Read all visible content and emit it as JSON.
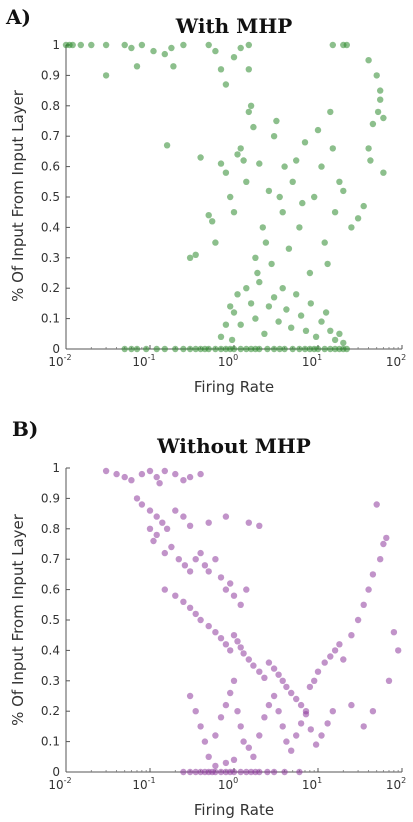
{
  "chart_data": [
    {
      "type": "scatter",
      "panel_label": "A)",
      "title": "With MHP",
      "xlabel": "Firing Rate",
      "ylabel": "% Of Input From Input Layer",
      "xscale": "log",
      "xlim": [
        0.01,
        100
      ],
      "ylim": [
        0,
        1
      ],
      "x_ticks": [
        "10",
        "10",
        "10",
        "10",
        "10"
      ],
      "x_tick_exponents": [
        "-2",
        "-1",
        "0",
        "1",
        "2"
      ],
      "y_ticks": [
        "0",
        "0.1",
        "0.2",
        "0.3",
        "0.4",
        "0.5",
        "0.6",
        "0.7",
        "0.8",
        "0.9",
        "1"
      ],
      "color": "#2e8b2e",
      "grid": false,
      "points_visible": "approx 700 points (representative sample)",
      "points": [
        [
          0.01,
          1
        ],
        [
          0.011,
          1
        ],
        [
          0.012,
          1
        ],
        [
          0.015,
          1
        ],
        [
          0.02,
          1
        ],
        [
          0.03,
          1
        ],
        [
          0.03,
          0.9
        ],
        [
          0.05,
          1
        ],
        [
          0.06,
          0.99
        ],
        [
          0.07,
          0.93
        ],
        [
          0.08,
          1
        ],
        [
          0.11,
          0.98
        ],
        [
          0.15,
          0.97
        ],
        [
          0.18,
          0.99
        ],
        [
          0.19,
          0.93
        ],
        [
          0.25,
          1
        ],
        [
          0.5,
          1
        ],
        [
          0.6,
          0.98
        ],
        [
          1.0,
          0.96
        ],
        [
          1.2,
          0.99
        ],
        [
          1.5,
          1
        ],
        [
          0.7,
          0.92
        ],
        [
          0.8,
          0.87
        ],
        [
          1.5,
          0.92
        ],
        [
          15,
          1
        ],
        [
          20,
          1
        ],
        [
          22,
          1
        ],
        [
          40,
          0.95
        ],
        [
          50,
          0.9
        ],
        [
          55,
          0.85
        ],
        [
          55,
          0.82
        ],
        [
          52,
          0.78
        ],
        [
          60,
          0.76
        ],
        [
          45,
          0.74
        ],
        [
          0.16,
          0.67
        ],
        [
          0.3,
          0.3
        ],
        [
          0.35,
          0.31
        ],
        [
          0.4,
          0.63
        ],
        [
          0.5,
          0.44
        ],
        [
          0.55,
          0.42
        ],
        [
          0.6,
          0.35
        ],
        [
          0.7,
          0.61
        ],
        [
          0.8,
          0.58
        ],
        [
          0.9,
          0.5
        ],
        [
          1.0,
          0.45
        ],
        [
          1.1,
          0.64
        ],
        [
          1.2,
          0.66
        ],
        [
          1.3,
          0.62
        ],
        [
          1.4,
          0.55
        ],
        [
          1.5,
          0.78
        ],
        [
          1.6,
          0.8
        ],
        [
          1.7,
          0.73
        ],
        [
          1.8,
          0.3
        ],
        [
          1.9,
          0.25
        ],
        [
          2.0,
          0.61
        ],
        [
          2.2,
          0.4
        ],
        [
          2.4,
          0.35
        ],
        [
          2.6,
          0.52
        ],
        [
          2.8,
          0.28
        ],
        [
          3.0,
          0.7
        ],
        [
          3.2,
          0.75
        ],
        [
          3.5,
          0.5
        ],
        [
          3.8,
          0.45
        ],
        [
          4.0,
          0.6
        ],
        [
          4.5,
          0.33
        ],
        [
          5.0,
          0.55
        ],
        [
          5.5,
          0.62
        ],
        [
          6.0,
          0.4
        ],
        [
          6.5,
          0.48
        ],
        [
          7.0,
          0.68
        ],
        [
          8.0,
          0.25
        ],
        [
          9.0,
          0.5
        ],
        [
          10,
          0.72
        ],
        [
          11,
          0.6
        ],
        [
          12,
          0.35
        ],
        [
          13,
          0.28
        ],
        [
          14,
          0.78
        ],
        [
          15,
          0.66
        ],
        [
          16,
          0.45
        ],
        [
          18,
          0.55
        ],
        [
          20,
          0.52
        ],
        [
          25,
          0.4
        ],
        [
          30,
          0.43
        ],
        [
          35,
          0.47
        ],
        [
          40,
          0.66
        ],
        [
          42,
          0.62
        ],
        [
          60,
          0.58
        ],
        [
          1.0,
          0.12
        ],
        [
          1.1,
          0.18
        ],
        [
          1.2,
          0.08
        ],
        [
          1.4,
          0.2
        ],
        [
          1.6,
          0.15
        ],
        [
          1.8,
          0.1
        ],
        [
          2.0,
          0.22
        ],
        [
          2.3,
          0.05
        ],
        [
          2.6,
          0.14
        ],
        [
          3.0,
          0.17
        ],
        [
          3.4,
          0.09
        ],
        [
          3.8,
          0.2
        ],
        [
          4.2,
          0.13
        ],
        [
          4.8,
          0.07
        ],
        [
          5.5,
          0.18
        ],
        [
          6.3,
          0.11
        ],
        [
          7.2,
          0.06
        ],
        [
          8.2,
          0.15
        ],
        [
          9.5,
          0.04
        ],
        [
          11,
          0.09
        ],
        [
          12.5,
          0.12
        ],
        [
          14,
          0.06
        ],
        [
          16,
          0.03
        ],
        [
          18,
          0.05
        ],
        [
          20,
          0.02
        ],
        [
          0.7,
          0.04
        ],
        [
          0.8,
          0.08
        ],
        [
          0.9,
          0.14
        ],
        [
          0.95,
          0.03
        ],
        [
          0.05,
          0
        ],
        [
          0.06,
          0
        ],
        [
          0.07,
          0
        ],
        [
          0.09,
          0
        ],
        [
          0.12,
          0
        ],
        [
          0.15,
          0
        ],
        [
          0.2,
          0
        ],
        [
          0.25,
          0
        ],
        [
          0.3,
          0
        ],
        [
          0.35,
          0
        ],
        [
          0.4,
          0
        ],
        [
          0.45,
          0
        ],
        [
          0.5,
          0
        ],
        [
          0.6,
          0
        ],
        [
          0.7,
          0
        ],
        [
          0.8,
          0
        ],
        [
          0.9,
          0
        ],
        [
          1.0,
          0
        ],
        [
          1.2,
          0
        ],
        [
          1.4,
          0
        ],
        [
          1.6,
          0
        ],
        [
          1.8,
          0
        ],
        [
          2,
          0
        ],
        [
          2.5,
          0
        ],
        [
          3,
          0
        ],
        [
          3.5,
          0
        ],
        [
          4,
          0
        ],
        [
          5,
          0
        ],
        [
          6,
          0
        ],
        [
          7,
          0
        ],
        [
          8,
          0
        ],
        [
          9,
          0
        ],
        [
          10,
          0
        ],
        [
          12,
          0
        ],
        [
          14,
          0
        ],
        [
          16,
          0
        ],
        [
          18,
          0
        ],
        [
          20,
          0
        ],
        [
          22,
          0
        ]
      ]
    },
    {
      "type": "scatter",
      "panel_label": "B)",
      "title": "Without MHP",
      "xlabel": "Firing Rate",
      "ylabel": "% Of Input From Input Layer",
      "xscale": "log",
      "xlim": [
        0.01,
        100
      ],
      "ylim": [
        0,
        1
      ],
      "x_ticks": [
        "10",
        "10",
        "10",
        "10",
        "10"
      ],
      "x_tick_exponents": [
        "-2",
        "-1",
        "0",
        "1",
        "2"
      ],
      "y_ticks": [
        "0",
        "0.1",
        "0.2",
        "0.3",
        "0.4",
        "0.5",
        "0.6",
        "0.7",
        "0.8",
        "0.9",
        "1"
      ],
      "color": "#8e3a9d",
      "grid": false,
      "points_visible": "approx 900 points (representative sample)",
      "points": [
        [
          0.03,
          0.99
        ],
        [
          0.04,
          0.98
        ],
        [
          0.05,
          0.97
        ],
        [
          0.06,
          0.96
        ],
        [
          0.08,
          0.98
        ],
        [
          0.1,
          0.99
        ],
        [
          0.12,
          0.97
        ],
        [
          0.13,
          0.95
        ],
        [
          0.15,
          0.99
        ],
        [
          0.2,
          0.98
        ],
        [
          0.25,
          0.96
        ],
        [
          0.3,
          0.97
        ],
        [
          0.4,
          0.98
        ],
        [
          0.07,
          0.9
        ],
        [
          0.08,
          0.88
        ],
        [
          0.1,
          0.86
        ],
        [
          0.12,
          0.84
        ],
        [
          0.14,
          0.82
        ],
        [
          0.16,
          0.8
        ],
        [
          0.12,
          0.78
        ],
        [
          0.2,
          0.86
        ],
        [
          0.25,
          0.84
        ],
        [
          0.3,
          0.81
        ],
        [
          0.1,
          0.8
        ],
        [
          0.11,
          0.76
        ],
        [
          0.15,
          0.72
        ],
        [
          0.18,
          0.74
        ],
        [
          0.22,
          0.7
        ],
        [
          0.26,
          0.68
        ],
        [
          0.3,
          0.66
        ],
        [
          0.35,
          0.7
        ],
        [
          0.4,
          0.72
        ],
        [
          0.45,
          0.68
        ],
        [
          0.5,
          0.66
        ],
        [
          0.6,
          0.7
        ],
        [
          0.7,
          0.64
        ],
        [
          0.8,
          0.6
        ],
        [
          0.9,
          0.62
        ],
        [
          1.0,
          0.58
        ],
        [
          1.2,
          0.55
        ],
        [
          1.4,
          0.6
        ],
        [
          0.5,
          0.82
        ],
        [
          0.8,
          0.84
        ],
        [
          1.5,
          0.82
        ],
        [
          2.0,
          0.81
        ],
        [
          0.15,
          0.6
        ],
        [
          0.2,
          0.58
        ],
        [
          0.25,
          0.56
        ],
        [
          0.3,
          0.54
        ],
        [
          0.35,
          0.52
        ],
        [
          0.4,
          0.5
        ],
        [
          0.5,
          0.48
        ],
        [
          0.6,
          0.46
        ],
        [
          0.7,
          0.44
        ],
        [
          0.8,
          0.42
        ],
        [
          0.9,
          0.4
        ],
        [
          1.0,
          0.45
        ],
        [
          1.1,
          0.43
        ],
        [
          1.2,
          0.41
        ],
        [
          1.3,
          0.39
        ],
        [
          1.5,
          0.37
        ],
        [
          1.7,
          0.35
        ],
        [
          2,
          0.33
        ],
        [
          2.3,
          0.31
        ],
        [
          2.6,
          0.36
        ],
        [
          3,
          0.34
        ],
        [
          3.4,
          0.32
        ],
        [
          3.8,
          0.3
        ],
        [
          4.2,
          0.28
        ],
        [
          4.8,
          0.26
        ],
        [
          5.5,
          0.24
        ],
        [
          6.3,
          0.22
        ],
        [
          7.2,
          0.2
        ],
        [
          8,
          0.28
        ],
        [
          9,
          0.3
        ],
        [
          10,
          0.33
        ],
        [
          12,
          0.36
        ],
        [
          14,
          0.38
        ],
        [
          16,
          0.4
        ],
        [
          18,
          0.42
        ],
        [
          20,
          0.37
        ],
        [
          25,
          0.45
        ],
        [
          30,
          0.5
        ],
        [
          35,
          0.55
        ],
        [
          40,
          0.6
        ],
        [
          45,
          0.65
        ],
        [
          55,
          0.7
        ],
        [
          60,
          0.75
        ],
        [
          65,
          0.77
        ],
        [
          50,
          0.88
        ],
        [
          90,
          0.4
        ],
        [
          80,
          0.46
        ],
        [
          70,
          0.3
        ],
        [
          45,
          0.2
        ],
        [
          35,
          0.15
        ],
        [
          25,
          0.22
        ],
        [
          0.3,
          0.25
        ],
        [
          0.35,
          0.2
        ],
        [
          0.4,
          0.15
        ],
        [
          0.45,
          0.1
        ],
        [
          0.5,
          0.05
        ],
        [
          0.6,
          0.12
        ],
        [
          0.7,
          0.18
        ],
        [
          0.8,
          0.22
        ],
        [
          0.9,
          0.26
        ],
        [
          1.0,
          0.3
        ],
        [
          1.1,
          0.2
        ],
        [
          1.2,
          0.15
        ],
        [
          1.3,
          0.1
        ],
        [
          1.5,
          0.08
        ],
        [
          1.7,
          0.05
        ],
        [
          2,
          0.12
        ],
        [
          2.3,
          0.18
        ],
        [
          2.6,
          0.22
        ],
        [
          3,
          0.25
        ],
        [
          3.4,
          0.2
        ],
        [
          3.8,
          0.15
        ],
        [
          4.2,
          0.1
        ],
        [
          4.8,
          0.07
        ],
        [
          5.5,
          0.12
        ],
        [
          6.3,
          0.16
        ],
        [
          7.2,
          0.19
        ],
        [
          8.2,
          0.14
        ],
        [
          9.5,
          0.09
        ],
        [
          11,
          0.12
        ],
        [
          13,
          0.16
        ],
        [
          15,
          0.2
        ],
        [
          0.25,
          0
        ],
        [
          0.3,
          0
        ],
        [
          0.35,
          0
        ],
        [
          0.4,
          0
        ],
        [
          0.45,
          0
        ],
        [
          0.5,
          0
        ],
        [
          0.55,
          0
        ],
        [
          0.6,
          0
        ],
        [
          0.7,
          0
        ],
        [
          0.8,
          0
        ],
        [
          0.9,
          0
        ],
        [
          1.0,
          0
        ],
        [
          1.2,
          0
        ],
        [
          1.4,
          0
        ],
        [
          1.6,
          0
        ],
        [
          1.8,
          0
        ],
        [
          2.0,
          0
        ],
        [
          2.5,
          0
        ],
        [
          3,
          0
        ],
        [
          4,
          0
        ],
        [
          6,
          0
        ],
        [
          0.6,
          0.02
        ],
        [
          0.8,
          0.03
        ],
        [
          1.0,
          0.04
        ]
      ]
    }
  ]
}
